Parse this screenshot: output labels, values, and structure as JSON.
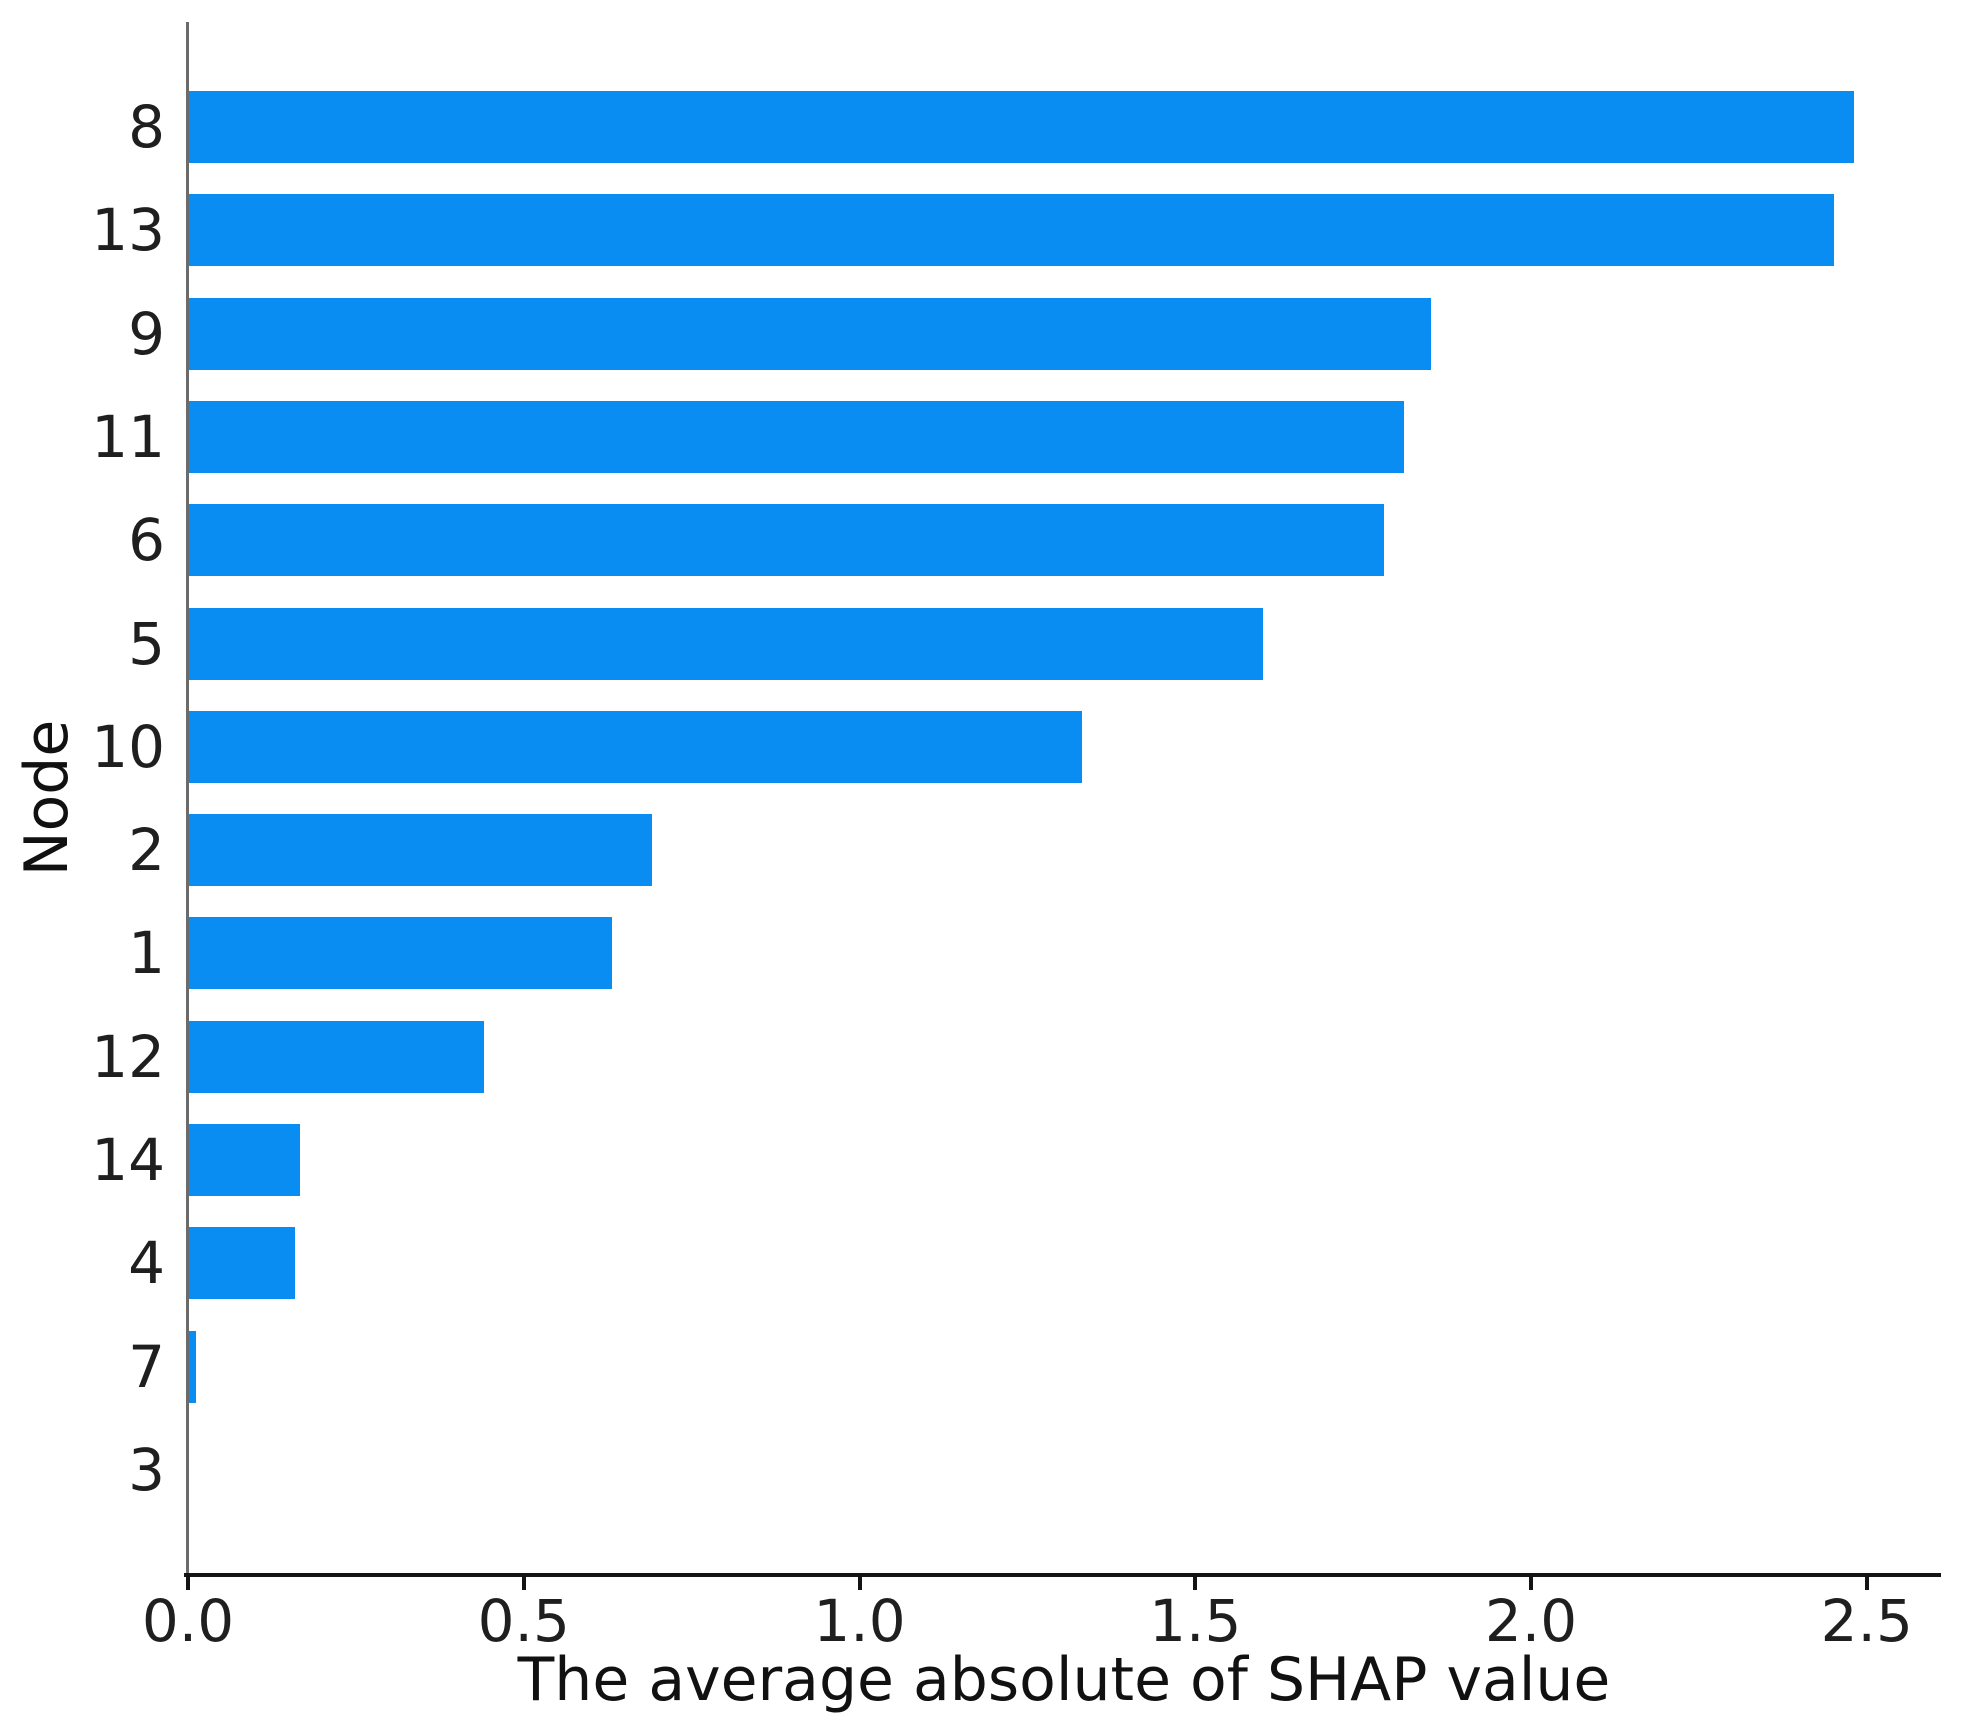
{
  "chart_data": {
    "type": "bar",
    "orientation": "horizontal",
    "xlabel": "The average absolute of SHAP value",
    "ylabel": "Node",
    "categories": [
      "8",
      "13",
      "9",
      "11",
      "6",
      "5",
      "10",
      "2",
      "1",
      "12",
      "14",
      "4",
      "7",
      "3"
    ],
    "values": [
      2.48,
      2.45,
      1.85,
      1.81,
      1.78,
      1.6,
      1.33,
      0.69,
      0.63,
      0.44,
      0.165,
      0.158,
      0.01,
      0
    ],
    "x_ticks": [
      0.0,
      0.5,
      1.0,
      1.5,
      2.0,
      2.5
    ],
    "x_tick_labels": [
      "0.0",
      "0.5",
      "1.0",
      "1.5",
      "2.0",
      "2.5"
    ],
    "xlim": [
      0,
      2.61
    ],
    "grid": false,
    "legend": "none",
    "bar_color": "#0a8df2",
    "spine_left_color": "#6b6b6b",
    "spine_bottom_color": "#141414",
    "text_color": "#1f1f1f"
  }
}
